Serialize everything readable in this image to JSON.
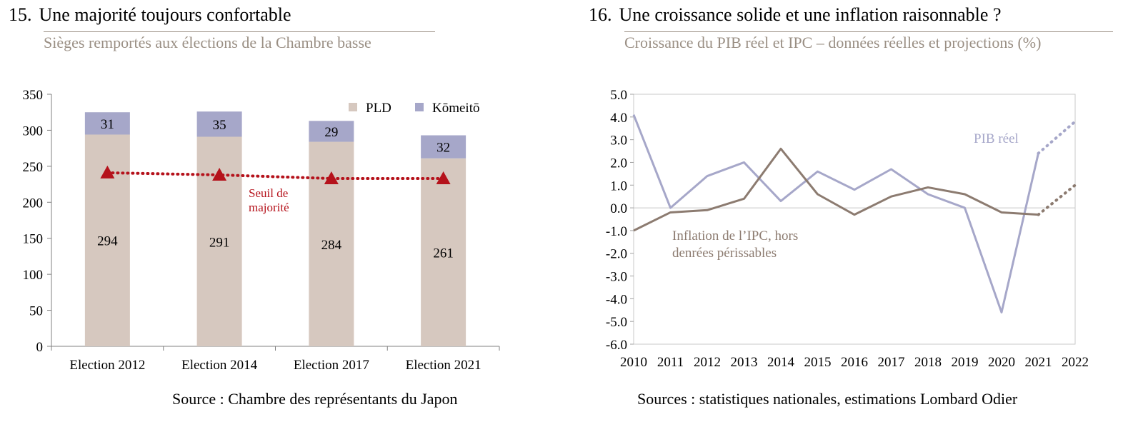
{
  "panel1": {
    "number": "15.",
    "title": "Une majorité toujours confortable",
    "subtitle": "Sièges remportés aux élections de la Chambre basse",
    "source": "Source : Chambre des représentants du Japon"
  },
  "panel2": {
    "number": "16.",
    "title": "Une croissance solide et une inflation raisonnable ?",
    "subtitle": "Croissance du PIB réel et IPC – données réelles et projections (%)",
    "source": "Sources : statistiques nationales, estimations Lombard Odier"
  },
  "chart_data": [
    {
      "type": "bar",
      "stacked": true,
      "categories": [
        "Election 2012",
        "Election 2014",
        "Election 2017",
        "Election 2021"
      ],
      "series": [
        {
          "name": "PLD",
          "values": [
            294,
            291,
            284,
            261
          ],
          "color": "#d6c8bf"
        },
        {
          "name": "Kōmeitō",
          "values": [
            31,
            35,
            29,
            32
          ],
          "color": "#a6a7c9"
        }
      ],
      "threshold": {
        "name": "Seuil de majorité",
        "label_lines": [
          "Seuil de",
          "majorité"
        ],
        "values": [
          241,
          238,
          233,
          233
        ],
        "color": "#b5121b"
      },
      "ylim": [
        0,
        350
      ],
      "yticks": [
        0,
        50,
        100,
        150,
        200,
        250,
        300,
        350
      ],
      "legend": "top-right",
      "grid": false
    },
    {
      "type": "line",
      "x": [
        2010,
        2011,
        2012,
        2013,
        2014,
        2015,
        2016,
        2017,
        2018,
        2019,
        2020,
        2021,
        2022
      ],
      "series": [
        {
          "name": "PIB réel",
          "label_lines": [
            "PIB réel"
          ],
          "values": [
            4.1,
            0.0,
            1.4,
            2.0,
            0.3,
            1.6,
            0.8,
            1.7,
            0.6,
            0.0,
            -4.6,
            2.4,
            3.8
          ],
          "projection_from": 2021,
          "color": "#a6a7c9"
        },
        {
          "name": "Inflation de l’IPC, hors denrées périssables",
          "label_lines": [
            "Inflation de l’IPC, hors",
            "denrées périssables"
          ],
          "values": [
            -1.0,
            -0.2,
            -0.1,
            0.4,
            2.6,
            0.6,
            -0.3,
            0.5,
            0.9,
            0.6,
            -0.2,
            -0.3,
            1.0
          ],
          "projection_from": 2021,
          "color": "#8c7b70"
        }
      ],
      "ylim": [
        -6.0,
        5.0
      ],
      "yticks": [
        "5.0",
        "4.0",
        "3.0",
        "2.0",
        "1.0",
        "0.0",
        "-1.0",
        "-2.0",
        "-3.0",
        "-4.0",
        "-5.0",
        "-6.0"
      ],
      "grid": false
    }
  ]
}
